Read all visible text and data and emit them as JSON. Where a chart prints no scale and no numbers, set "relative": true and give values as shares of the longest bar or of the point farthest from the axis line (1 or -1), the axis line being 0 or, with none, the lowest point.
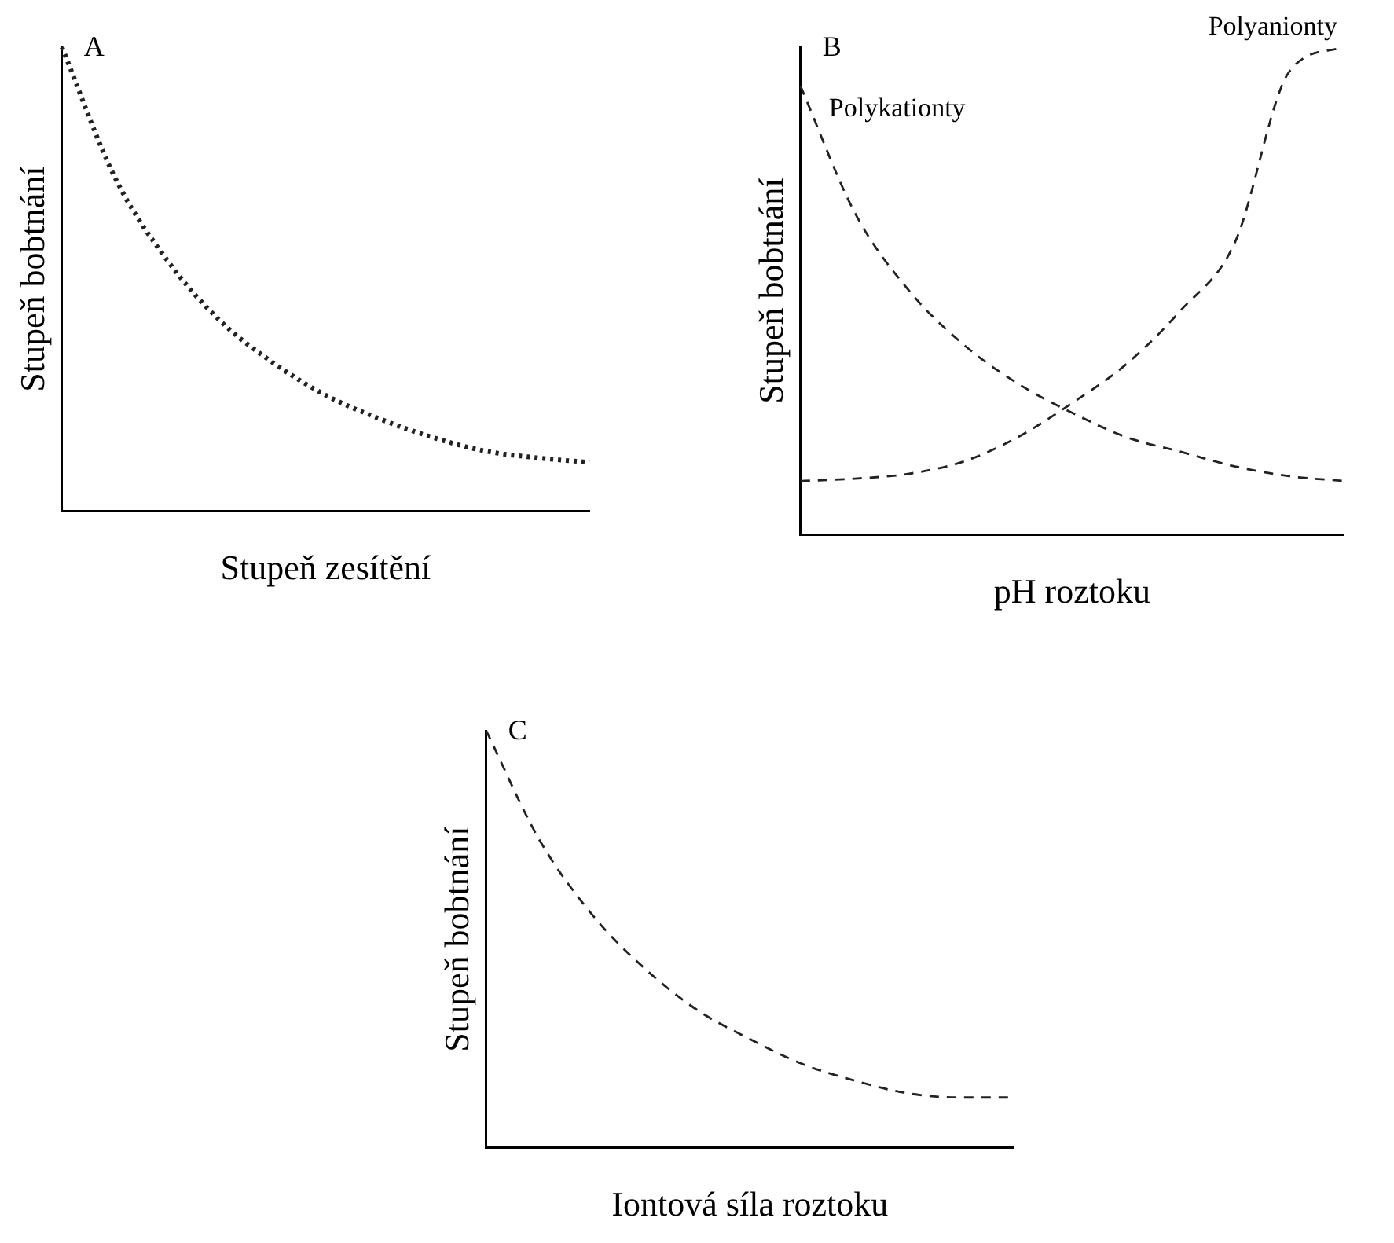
{
  "chart_data": [
    {
      "type": "line",
      "title": "A",
      "xlabel": "Stupeň zesítění",
      "ylabel": "Stupeň bobtnání",
      "relative": true,
      "categories": [
        null,
        null,
        null,
        null,
        null,
        null,
        null,
        null,
        null,
        null,
        null
      ],
      "legend": false,
      "grid": false,
      "marker": "none",
      "line_style": "dotted",
      "series": [
        {
          "color": "#222222",
          "values": [
            1,
            0.72,
            0.54,
            0.41,
            0.32,
            0.25,
            0.2,
            0.16,
            0.13,
            0.115,
            0.105
          ]
        }
      ]
    },
    {
      "type": "line",
      "title": "B",
      "xlabel": "pH roztoku",
      "ylabel": "Stupeň bobtnání",
      "relative": true,
      "categories": [
        null,
        null,
        null,
        null,
        null,
        null,
        null,
        null,
        null,
        null,
        null
      ],
      "legend": false,
      "grid": false,
      "marker": "none",
      "line_style": "dashed",
      "series": [
        {
          "name": "Polykationty",
          "color": "#222222",
          "values": [
            0.92,
            0.66,
            0.5,
            0.39,
            0.31,
            0.25,
            0.2,
            0.17,
            0.14,
            0.12,
            0.11
          ]
        },
        {
          "name": "Polyanionty",
          "color": "#222222",
          "values": [
            0.11,
            0.115,
            0.125,
            0.15,
            0.2,
            0.27,
            0.35,
            0.46,
            0.6,
            0.95,
            1
          ]
        }
      ]
    },
    {
      "type": "line",
      "title": "C",
      "xlabel": "Iontová síla roztoku",
      "ylabel": "Stupeň bobtnání",
      "relative": true,
      "categories": [
        null,
        null,
        null,
        null,
        null,
        null,
        null,
        null,
        null,
        null,
        null
      ],
      "legend": false,
      "grid": false,
      "marker": "none",
      "line_style": "dashed",
      "series": [
        {
          "color": "#222222",
          "values": [
            1,
            0.74,
            0.56,
            0.43,
            0.33,
            0.26,
            0.2,
            0.16,
            0.13,
            0.12,
            0.12
          ]
        }
      ]
    }
  ]
}
